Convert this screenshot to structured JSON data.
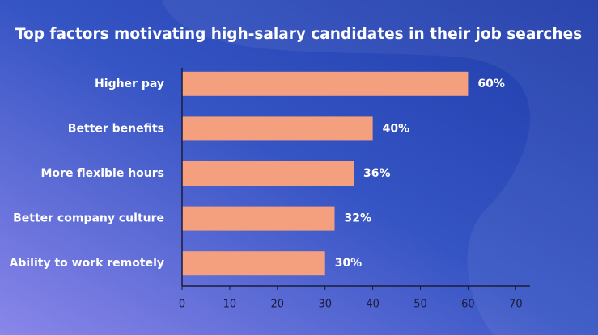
{
  "chart_data": {
    "type": "hbar",
    "title": "Top factors motivating high-salary candidates in their job searches",
    "categories": [
      "Higher pay",
      "Better benefits",
      "More flexible hours",
      "Better company culture",
      "Ability to work remotely"
    ],
    "values": [
      60,
      40,
      36,
      32,
      30
    ],
    "value_labels": [
      "60%",
      "40%",
      "36%",
      "32%",
      "30%"
    ],
    "color": "#f4a07e",
    "xlim": [
      0,
      73
    ],
    "xticks": [
      0,
      10,
      20,
      30,
      40,
      50,
      60,
      70
    ]
  }
}
